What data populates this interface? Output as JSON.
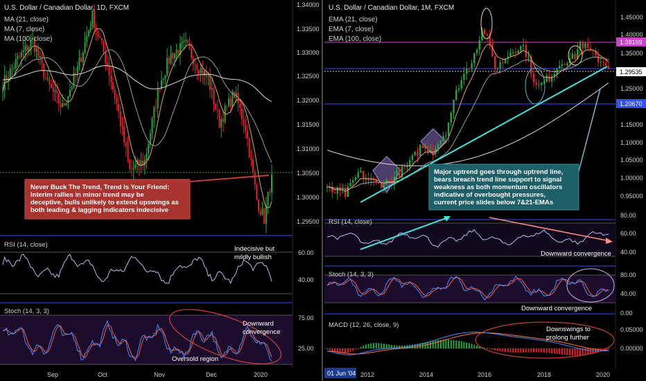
{
  "colors": {
    "background": "#000000",
    "up_candle": "#26a641",
    "down_candle": "#e8202a",
    "ma21": "#9c9c9c",
    "ma7": "#e0a860",
    "ma100": "#dcdcdc",
    "trendline": "#3ce6e0",
    "magenta_line": "#e040e0",
    "blue_line": "#3050ff",
    "osc_line": "#c8b4f0",
    "stoch_k": "#4a8cff",
    "stoch_d": "#ff5a3c",
    "macd_line": "#4a8cff",
    "signal_line": "#ff7a3c",
    "red_callout": "#a8332f",
    "teal_callout": "#1e5f68"
  },
  "left_chart": {
    "title": "U.S. Dollar / Canadian Dollar, 1D, FXCM",
    "legend": [
      "MA (21, close)",
      "MA (7, close)",
      "MA (100, close)"
    ],
    "price_ticks": [
      "1.34000",
      "1.33500",
      "1.33000",
      "1.32500",
      "1.32000",
      "1.31500",
      "1.31000",
      "1.30500",
      "1.30000",
      "1.29500"
    ],
    "x_ticks": [
      "Sep",
      "Oct",
      "Nov",
      "Dec",
      "2020"
    ],
    "callout": "Never Buck The Trend, Trend Is Your Friend:\nInterim rallies in minor trend may be deceptive, bulls unlikely to extend upswings as both leading & lagging indicators indecisive",
    "rsi": {
      "label": "RSI (14, close)",
      "ticks": [
        "60.00",
        "40.00"
      ],
      "note": "Indecisive but\nmildly bullish"
    },
    "stoch": {
      "label": "Stoch (14, 3, 3)",
      "ticks": [
        "75.00",
        "25.00"
      ],
      "note": "Downward\nconvergence",
      "note2": "Oversold region"
    }
  },
  "right_chart": {
    "title": "U.S. Dollar / Canadian Dollar, 1M, FXCM",
    "legend": [
      "EMA (21, close)",
      "EMA (7, close)",
      "EMA (100, close)"
    ],
    "price_ticks": [
      "1.45000",
      "1.40000",
      "1.35000",
      "1.30000",
      "1.25000",
      "1.20000",
      "1.15000",
      "1.10000",
      "1.05000",
      "1.00000",
      "0.95000"
    ],
    "badge_magenta": "1.38169",
    "badge_white": "1.29535",
    "badge_blue": "1.20670",
    "x_ticks": [
      "2012",
      "2014",
      "2016",
      "2018",
      "2020"
    ],
    "date_badge": "01 Jun '04",
    "callout": "Major uptrend goes through uptrend line,\nbears breach trend line support to signal weakness as both momentum oscillators indicative of overbought pressures, current price slides below 7&21-EMAs",
    "rsi": {
      "label": "RSI (14, close)",
      "ticks": [
        "80.00",
        "60.00",
        "40.00"
      ],
      "note": "Downward convergence"
    },
    "stoch": {
      "label": "Stoch (14, 3, 3)",
      "ticks": [
        "80.00",
        "40.00",
        "0.00"
      ],
      "note": "Downward convergence"
    },
    "macd": {
      "label": "MACD (12, 26, close, 9)",
      "ticks": [
        "0.05000",
        "0.00000"
      ],
      "note": "Downswings to\nprolong further"
    }
  },
  "chart_data": [
    {
      "type": "candlestick",
      "title": "U.S. Dollar / Canadian Dollar, 1D, FXCM",
      "series": [
        {
          "name": "MA (21, close)"
        },
        {
          "name": "MA (7, close)"
        },
        {
          "name": "MA (100, close)"
        }
      ],
      "x_ticks": [
        "Sep",
        "Oct",
        "Nov",
        "Dec",
        "2020"
      ],
      "ylim": [
        1.294,
        1.3405
      ],
      "anchors": [
        {
          "x": 0,
          "y": 1.324
        },
        {
          "x": 8,
          "y": 1.329
        },
        {
          "x": 16,
          "y": 1.333
        },
        {
          "x": 24,
          "y": 1.324
        },
        {
          "x": 32,
          "y": 1.319
        },
        {
          "x": 40,
          "y": 1.327
        },
        {
          "x": 48,
          "y": 1.338
        },
        {
          "x": 56,
          "y": 1.328
        },
        {
          "x": 62,
          "y": 1.318
        },
        {
          "x": 68,
          "y": 1.306
        },
        {
          "x": 76,
          "y": 1.308
        },
        {
          "x": 84,
          "y": 1.324
        },
        {
          "x": 90,
          "y": 1.33
        },
        {
          "x": 98,
          "y": 1.332
        },
        {
          "x": 104,
          "y": 1.328
        },
        {
          "x": 110,
          "y": 1.325
        },
        {
          "x": 116,
          "y": 1.316
        },
        {
          "x": 124,
          "y": 1.322
        },
        {
          "x": 130,
          "y": 1.315
        },
        {
          "x": 136,
          "y": 1.3
        },
        {
          "x": 140,
          "y": 1.296
        },
        {
          "x": 144,
          "y": 1.305
        }
      ],
      "last_price": 1.3053
    },
    {
      "type": "candlestick",
      "title": "U.S. Dollar / Canadian Dollar, 1M, FXCM",
      "series": [
        {
          "name": "EMA (21, close)"
        },
        {
          "name": "EMA (7, close)"
        },
        {
          "name": "EMA (100, close)"
        }
      ],
      "x_ticks": [
        "2012",
        "2014",
        "2016",
        "2018",
        "2020"
      ],
      "ylim": [
        0.93,
        1.47
      ],
      "anchors": [
        {
          "x": 2011.0,
          "y": 0.975
        },
        {
          "x": 2011.6,
          "y": 0.965
        },
        {
          "x": 2012.0,
          "y": 1.02
        },
        {
          "x": 2012.6,
          "y": 0.99
        },
        {
          "x": 2013.0,
          "y": 1.0
        },
        {
          "x": 2013.6,
          "y": 1.04
        },
        {
          "x": 2014.0,
          "y": 1.09
        },
        {
          "x": 2014.4,
          "y": 1.08
        },
        {
          "x": 2014.8,
          "y": 1.13
        },
        {
          "x": 2015.2,
          "y": 1.25
        },
        {
          "x": 2015.6,
          "y": 1.31
        },
        {
          "x": 2016.0,
          "y": 1.4
        },
        {
          "x": 2016.4,
          "y": 1.29
        },
        {
          "x": 2016.9,
          "y": 1.34
        },
        {
          "x": 2017.3,
          "y": 1.35
        },
        {
          "x": 2017.7,
          "y": 1.24
        },
        {
          "x": 2018.0,
          "y": 1.26
        },
        {
          "x": 2018.5,
          "y": 1.31
        },
        {
          "x": 2018.9,
          "y": 1.32
        },
        {
          "x": 2019.1,
          "y": 1.36
        },
        {
          "x": 2019.6,
          "y": 1.32
        },
        {
          "x": 2020.0,
          "y": 1.3
        }
      ],
      "levels": [
        1.38169,
        1.29535,
        1.2067
      ]
    }
  ]
}
